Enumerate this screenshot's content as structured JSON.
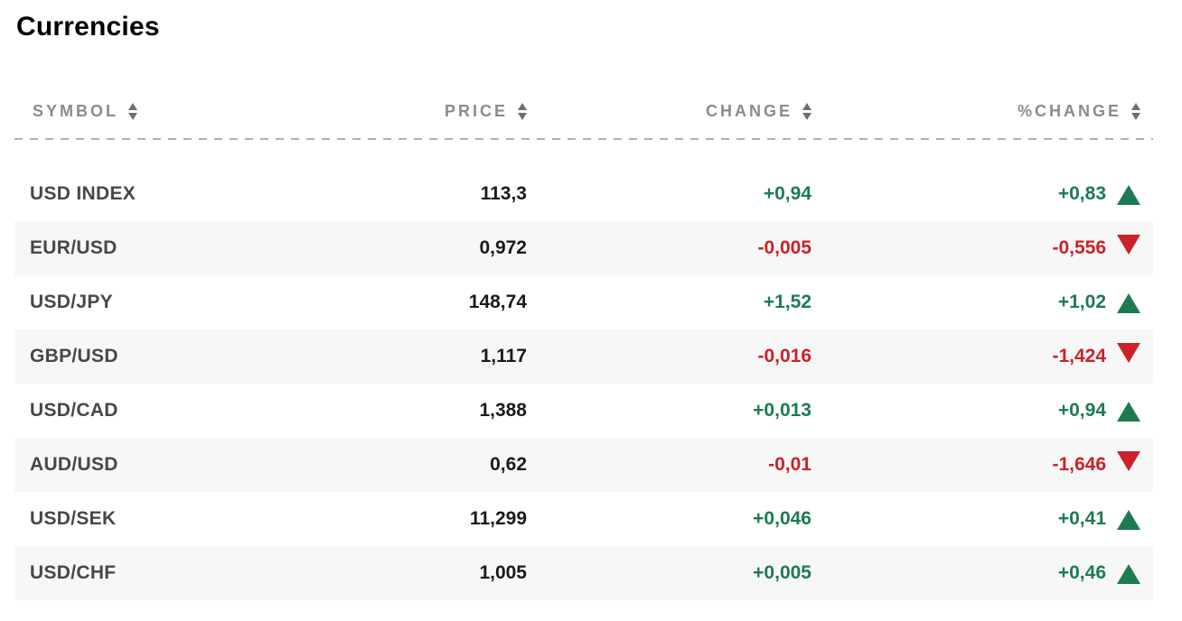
{
  "page": {
    "title": "Currencies"
  },
  "table": {
    "columns": [
      {
        "key": "symbol",
        "label": "SYMBOL"
      },
      {
        "key": "price",
        "label": "PRICE"
      },
      {
        "key": "change",
        "label": "CHANGE"
      },
      {
        "key": "pct_change",
        "label": "%CHANGE"
      }
    ],
    "rows": [
      {
        "symbol": "USD INDEX",
        "price": "113,3",
        "change": "+0,94",
        "pct_change": "+0,83",
        "direction": "up"
      },
      {
        "symbol": "EUR/USD",
        "price": "0,972",
        "change": "-0,005",
        "pct_change": "-0,556",
        "direction": "down"
      },
      {
        "symbol": "USD/JPY",
        "price": "148,74",
        "change": "+1,52",
        "pct_change": "+1,02",
        "direction": "up"
      },
      {
        "symbol": "GBP/USD",
        "price": "1,117",
        "change": "-0,016",
        "pct_change": "-1,424",
        "direction": "down"
      },
      {
        "symbol": "USD/CAD",
        "price": "1,388",
        "change": "+0,013",
        "pct_change": "+0,94",
        "direction": "up"
      },
      {
        "symbol": "AUD/USD",
        "price": "0,62",
        "change": "-0,01",
        "pct_change": "-1,646",
        "direction": "down"
      },
      {
        "symbol": "USD/SEK",
        "price": "11,299",
        "change": "+0,046",
        "pct_change": "+0,41",
        "direction": "up"
      },
      {
        "symbol": "USD/CHF",
        "price": "1,005",
        "change": "+0,005",
        "pct_change": "+0,46",
        "direction": "up"
      }
    ]
  },
  "colors": {
    "positive": "#1d7b52",
    "negative": "#cb2128",
    "header_text": "#8b8b8b",
    "row_alt_bg": "#f7f7f7"
  },
  "icons": {
    "sort": "sort-arrows-icon",
    "up": "triangle-up-icon",
    "down": "triangle-down-icon"
  }
}
